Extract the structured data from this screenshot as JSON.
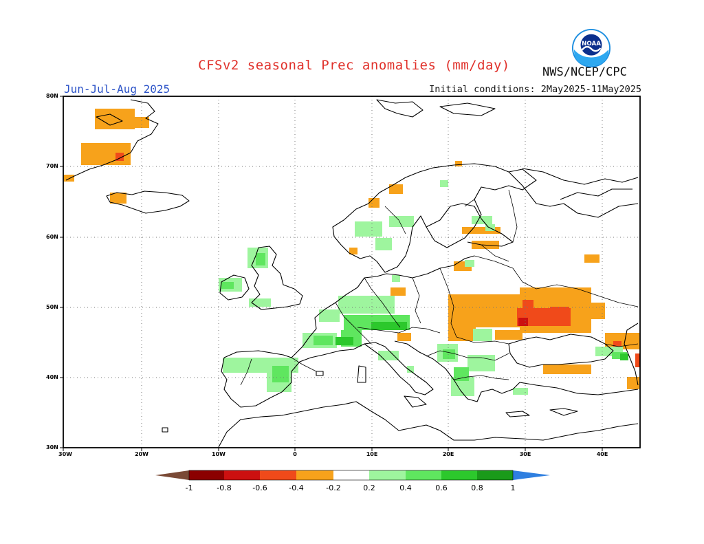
{
  "header": {
    "title": "CFSv2 seasonal Prec anomalies (mm/day)",
    "agency": "NWS/NCEP/CPC",
    "season": "Jun-Jul-Aug 2025",
    "initial_conditions": "Initial conditions: 2May2025-11May2025"
  },
  "logo": {
    "icon": "noaa-logo-icon",
    "text": "NOAA"
  },
  "map": {
    "region": "Europe",
    "lat_labels": [
      "80N",
      "70N",
      "60N",
      "50N",
      "40N",
      "30N"
    ],
    "lon_labels": [
      "30W",
      "20W",
      "10W",
      "0",
      "10E",
      "20E",
      "30E",
      "40E"
    ],
    "gridlines": "dotted",
    "anomalies": {
      "dry": [
        {
          "area": "Iceland north-west",
          "value": -0.4
        },
        {
          "area": "Iceland south-west",
          "value": -0.4
        },
        {
          "area": "Iceland core",
          "value": -0.6
        },
        {
          "area": "Svalbard south",
          "value": -0.2
        },
        {
          "area": "Faroe Islands",
          "value": -0.4
        },
        {
          "area": "Norway north coast",
          "value": -0.4
        },
        {
          "area": "Finland south",
          "value": -0.4
        },
        {
          "area": "Baltic east",
          "value": -0.4
        },
        {
          "area": "Belarus / Ukraine",
          "value": -0.4
        },
        {
          "area": "Central Ukraine",
          "value": -0.6
        },
        {
          "area": "Ukraine core",
          "value": -0.8
        },
        {
          "area": "Caucasus",
          "value": -0.4
        },
        {
          "area": "Caucasus core",
          "value": -0.6
        },
        {
          "area": "Turkey north",
          "value": -0.4
        },
        {
          "area": "Czechia",
          "value": -0.4
        },
        {
          "area": "Croatia coast",
          "value": -0.4
        },
        {
          "area": "Russia west",
          "value": -0.4
        }
      ],
      "wet": [
        {
          "area": "Scotland west",
          "value": 0.4
        },
        {
          "area": "Ireland west",
          "value": 0.4
        },
        {
          "area": "Wales",
          "value": 0.2
        },
        {
          "area": "Norway south",
          "value": 0.2
        },
        {
          "area": "Sweden south",
          "value": 0.2
        },
        {
          "area": "Estonia",
          "value": 0.2
        },
        {
          "area": "Germany",
          "value": 0.4
        },
        {
          "area": "Alps",
          "value": 0.6
        },
        {
          "area": "France south",
          "value": 0.4
        },
        {
          "area": "Spain north",
          "value": 0.2
        },
        {
          "area": "Spain east",
          "value": 0.4
        },
        {
          "area": "Italy north",
          "value": 0.4
        },
        {
          "area": "Balkans",
          "value": 0.4
        },
        {
          "area": "Greece",
          "value": 0.4
        },
        {
          "area": "Romania",
          "value": 0.4
        },
        {
          "area": "Georgia",
          "value": 0.6
        }
      ]
    }
  },
  "colorbar": {
    "labels": [
      "-1",
      "-0.8",
      "-0.6",
      "-0.4",
      "-0.2",
      "0.2",
      "0.4",
      "0.6",
      "0.8",
      "1"
    ],
    "colors": {
      "lt_-1": "#7a4a36",
      "-1_-0.8": "#8b0000",
      "-0.8_-0.6": "#cc1010",
      "-0.6_-0.4": "#f04a1a",
      "-0.4_-0.2": "#f7a21b",
      "neutral": "#ffffff",
      "0.2_0.4": "#9ef59e",
      "0.4_0.6": "#5fe65f",
      "0.6_0.8": "#2cc82c",
      "0.8_1": "#1a9a1a",
      "gt_1": "#2f7fe0"
    }
  }
}
